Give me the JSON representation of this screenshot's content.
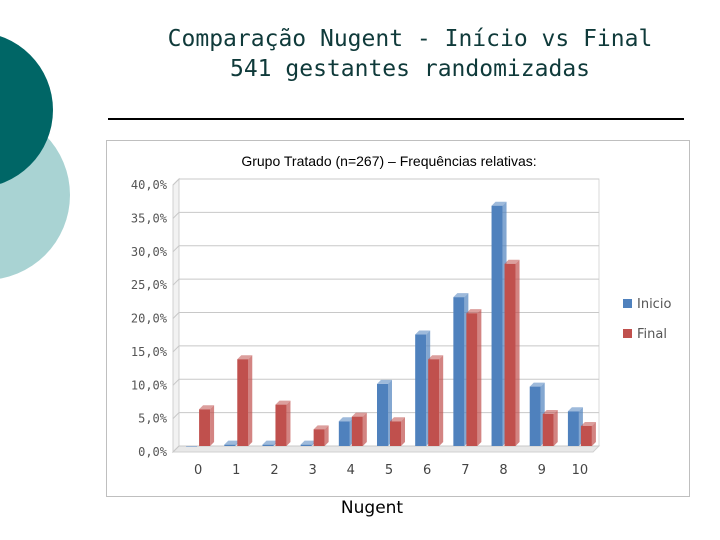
{
  "slide": {
    "title_line1": "Comparação Nugent - Início vs Final",
    "title_line2": "541 gestantes randomizadas"
  },
  "colors": {
    "inicio": "#4f81bd",
    "final": "#c0504d",
    "deco_dark": "#006666",
    "deco_light": "#a9d3d3"
  },
  "chart_data": {
    "type": "bar",
    "title": "Grupo Tratado (n=267) – Frequências relativas:",
    "xlabel": "Nugent",
    "ylabel": "",
    "categories": [
      "0",
      "1",
      "2",
      "3",
      "4",
      "5",
      "6",
      "7",
      "8",
      "9",
      "10"
    ],
    "series": [
      {
        "name": "Inicio",
        "values": [
          0.0,
          0.2,
          0.2,
          0.2,
          3.7,
          9.3,
          16.7,
          22.3,
          36.0,
          8.9,
          5.2
        ]
      },
      {
        "name": "Final",
        "values": [
          5.5,
          13.0,
          6.2,
          2.5,
          4.4,
          3.7,
          13.0,
          19.9,
          27.3,
          4.8,
          3.0
        ]
      }
    ],
    "ylim": [
      0,
      40
    ],
    "yticks": [
      "0,0%",
      "5,0%",
      "10,0%",
      "15,0%",
      "20,0%",
      "25,0%",
      "30,0%",
      "35,0%",
      "40,0%"
    ],
    "grid": true,
    "legend_position": "right"
  }
}
